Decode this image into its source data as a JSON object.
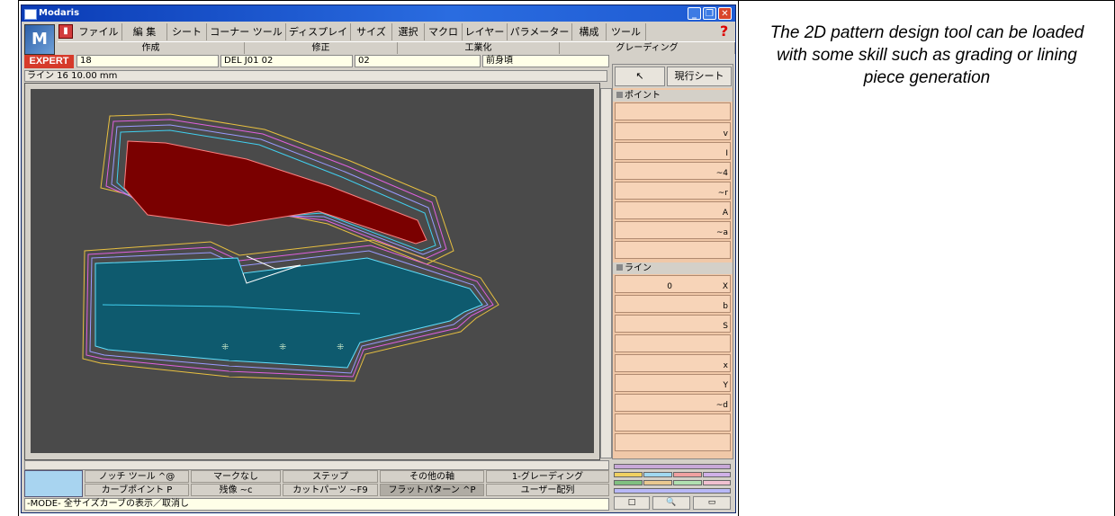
{
  "caption": "The 2D pattern design tool can be loaded with some skill such as grading or lining piece generation",
  "window": {
    "title": "Modaris"
  },
  "menu": [
    "ファイル",
    "編 集",
    "シート",
    "コーナー ツール",
    "ディスプレイ",
    "サイズ",
    "選択",
    "マクロ",
    "レイヤー",
    "パラメーター",
    "構成",
    "ツール"
  ],
  "groups": [
    "作成",
    "修正",
    "工業化",
    "グレーディング"
  ],
  "info": {
    "expert": "EXPERT",
    "num": "18",
    "piece_code": "DEL J01 02",
    "piece_no": "02",
    "piece_name": "前身頃",
    "line_length": "ライン 16 10.00 mm"
  },
  "panel": {
    "sheet_button": "現行シート",
    "section_point": "ポイント",
    "section_line": "ライン",
    "keys": [
      "v",
      "I",
      "~4",
      "~r",
      "A",
      "~a",
      "0",
      "X",
      "b",
      "S",
      "x",
      "Y",
      "~d"
    ]
  },
  "bottom": {
    "row1": [
      {
        "label": "ノッチ ツール",
        "key": "^@"
      },
      {
        "label": "マークなし",
        "key": ""
      },
      {
        "label": "ステップ",
        "key": ""
      },
      {
        "label": "その他の軸",
        "key": ""
      },
      {
        "label": "1-グレーディング",
        "key": ""
      }
    ],
    "row2": [
      {
        "label": "カーブポイント",
        "key": "P"
      },
      {
        "label": "残像",
        "key": "~c"
      },
      {
        "label": "カットパーツ",
        "key": "~F9"
      },
      {
        "label": "フラットパターン",
        "key": "^P"
      },
      {
        "label": "ユーザー配列",
        "key": ""
      }
    ]
  },
  "status": "-MODE- 全サイズカーブの表示／取消し",
  "colors": {
    "piece_fill": "#0e5a6e",
    "dark_piece": "#7a0000",
    "canvas": "#4a4a4a",
    "panel": "#f0c8a8",
    "expert": "#d63a2a"
  }
}
